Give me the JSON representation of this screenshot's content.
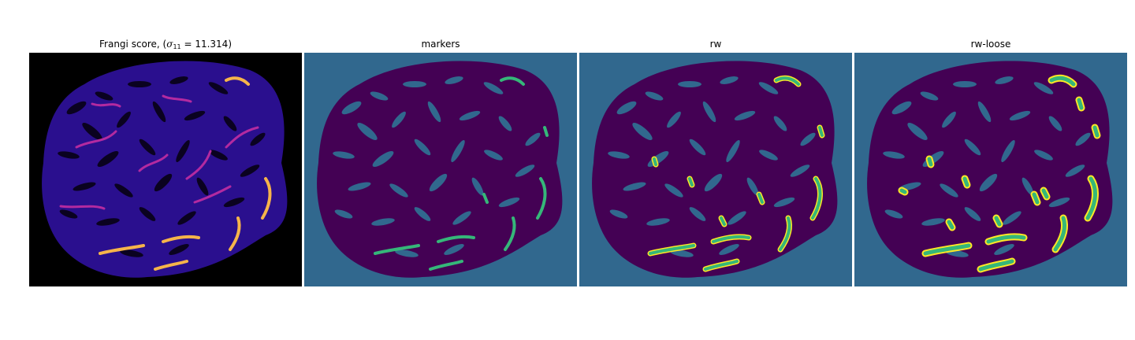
{
  "figure": {
    "panels": [
      {
        "id": "frangi",
        "title_prefix": "Frangi score, (",
        "title_symbol": "σ",
        "title_sub": "11",
        "title_suffix": " = 11.314)",
        "colormap": "plasma",
        "colors": {
          "background": "#000000",
          "body": "#2a0f8e",
          "holes": "#0a0220",
          "ridge": "#b32aa0",
          "highlight": "#f6b44a"
        }
      },
      {
        "id": "markers",
        "title": "markers",
        "colors": {
          "background": "#31688e",
          "foreground": "#440154",
          "marker": "#35b779"
        }
      },
      {
        "id": "rw",
        "title": "rw",
        "colors": {
          "background": "#31688e",
          "foreground": "#440154",
          "label": "#35b779",
          "outline": "#fde725"
        }
      },
      {
        "id": "rw_loose",
        "title": "rw-loose",
        "colors": {
          "background": "#31688e",
          "foreground": "#440154",
          "label": "#35b779",
          "outline": "#fde725"
        }
      }
    ]
  }
}
